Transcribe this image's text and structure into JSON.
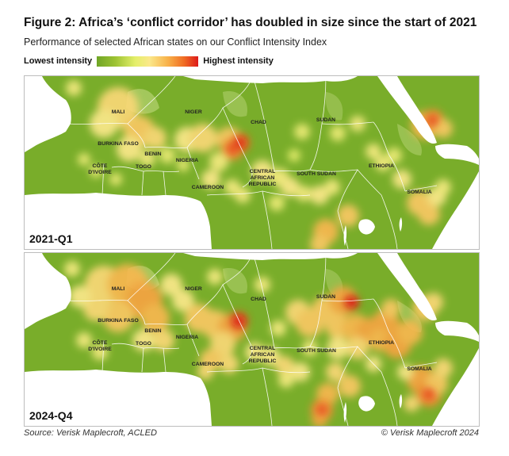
{
  "title": "Figure 2: Africa’s ‘conflict corridor’ has doubled in size since the start of 2021",
  "subtitle": "Performance of selected African states on our Conflict Intensity Index",
  "legend": {
    "low_label": "Lowest intensity",
    "high_label": "Highest intensity",
    "colors": [
      "#6fa526",
      "#9cc232",
      "#e4ef6a",
      "#fbe88a",
      "#f8b24a",
      "#f06d24",
      "#dd1a1a"
    ]
  },
  "panels": [
    {
      "label": "2021-Q1"
    },
    {
      "label": "2024-Q4"
    }
  ],
  "countries": {
    "mali": "MALI",
    "niger": "NIGER",
    "chad": "CHAD",
    "sudan": "SUDAN",
    "burkina_faso": "BURKINA FASO",
    "benin": "BENIN",
    "togo": "TOGO",
    "nigeria": "NIGERIA",
    "cote_divoire_1": "CÔTE",
    "cote_divoire_2": "D'IVOIRE",
    "car_1": "CENTRAL",
    "car_2": "AFRICAN",
    "car_3": "REPUBLIC",
    "south_sudan": "SOUTH SUDAN",
    "ethiopia": "ETHIOPIA",
    "cameroon": "CAMEROON",
    "somalia": "SOMALIA"
  },
  "map_colors": {
    "land": "#79ad2a",
    "sea": "#ffffff",
    "border": "#ffffff",
    "lake": "#ffffff"
  },
  "source": "Source: Verisk Maplecroft, ACLED",
  "copyright": "© Verisk Maplecroft 2024"
}
